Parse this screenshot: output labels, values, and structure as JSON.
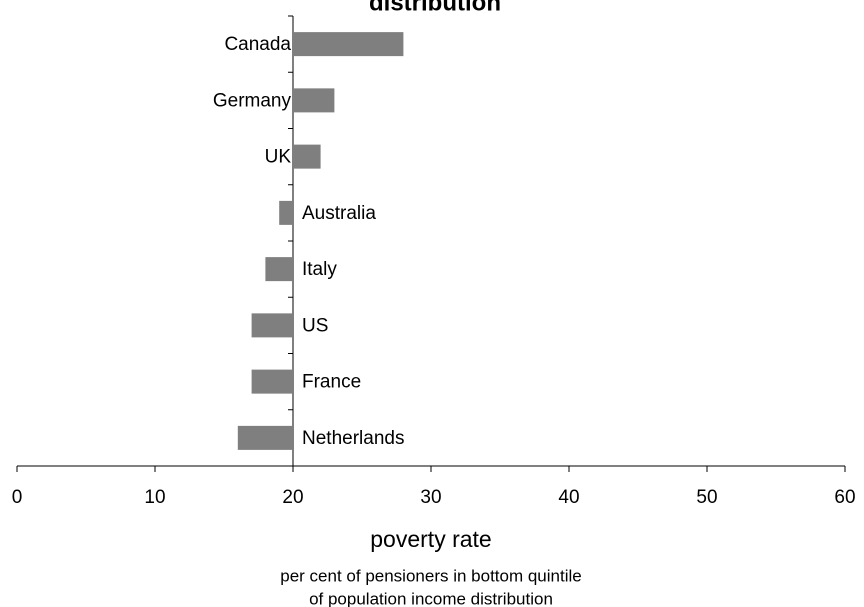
{
  "chart_data": {
    "type": "bar",
    "orientation": "horizontal",
    "title": "distribution",
    "categories": [
      "Canada",
      "Germany",
      "UK",
      "Australia",
      "Italy",
      "US",
      "France",
      "Netherlands"
    ],
    "values": [
      28,
      23,
      22,
      19,
      18,
      17,
      17,
      16
    ],
    "color": "#7f7f7f",
    "axis_cross": 20,
    "xlim": [
      0,
      60
    ],
    "xticks": [
      0,
      10,
      20,
      30,
      40,
      50,
      60
    ],
    "xlabel": "poverty rate",
    "xlabel_sub": [
      "per cent of pensioners in bottom quintile",
      "of population income distribution"
    ]
  }
}
